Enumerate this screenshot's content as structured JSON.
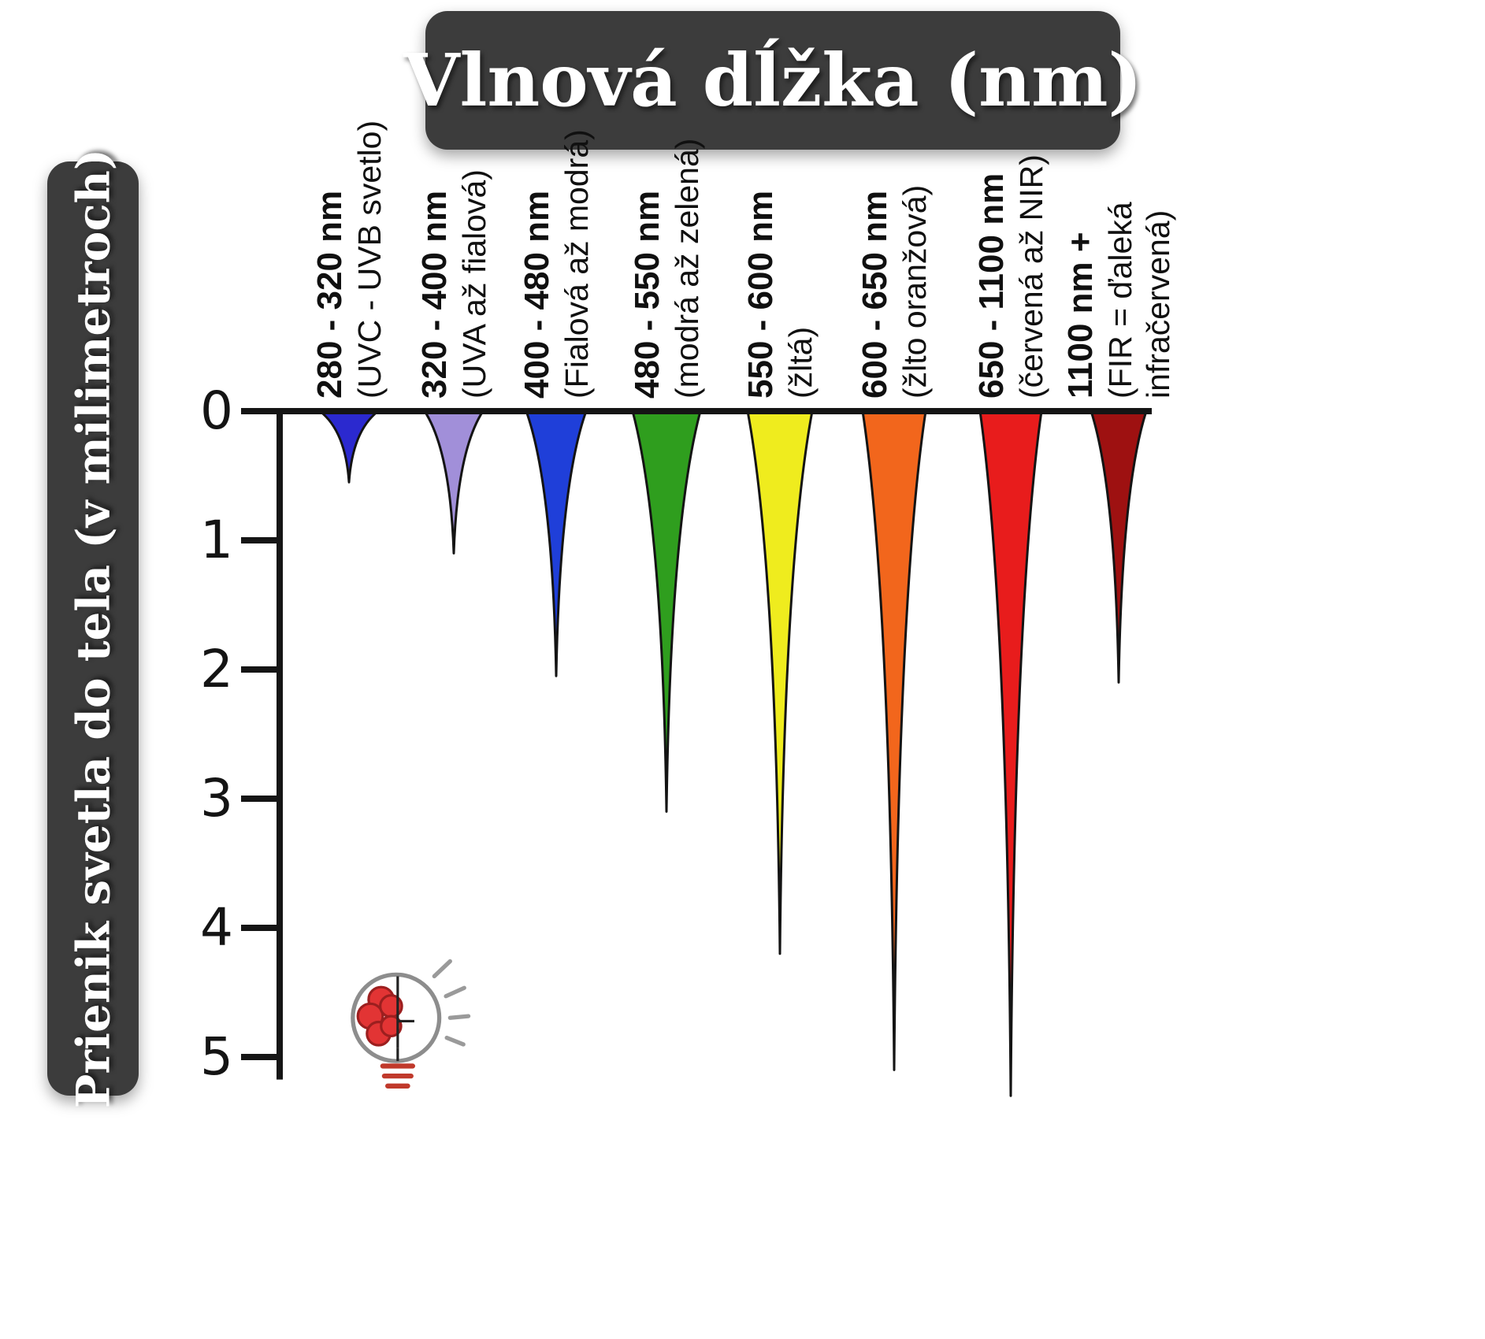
{
  "chart_data": {
    "type": "bar",
    "title": "Vlnová dĺžka (nm)",
    "ylabel": "Prienik svetla do tela (v milimetroch)",
    "ylim": [
      0,
      5.4
    ],
    "y_unit": "mm",
    "grid": false,
    "y_ticks": [
      "0",
      "1",
      "2",
      "3",
      "4",
      "5"
    ],
    "categories": [
      {
        "range": "280 - 320 nm",
        "label": "(UVC - UVB svetlo)",
        "depth_mm": 0.55,
        "color": "#2b29cf"
      },
      {
        "range": "320 - 400 nm",
        "label": "(UVA až fialová)",
        "depth_mm": 1.1,
        "color": "#a18fd9"
      },
      {
        "range": "400 - 480 nm",
        "label": "(Fialová až modrá)",
        "depth_mm": 2.05,
        "color": "#1f3fd9"
      },
      {
        "range": "480 - 550 nm",
        "label": "(modrá až zelená)",
        "depth_mm": 3.1,
        "color": "#2f9e1e"
      },
      {
        "range": "550 - 600 nm",
        "label": "(žltá)",
        "depth_mm": 4.2,
        "color": "#efec1e"
      },
      {
        "range": "600 - 650 nm",
        "label": "(žlto oranžová)",
        "depth_mm": 5.1,
        "color": "#f2661c"
      },
      {
        "range": "650 - 1100 nm",
        "label": "(červená až NIR)",
        "depth_mm": 5.3,
        "color": "#e81c1c"
      },
      {
        "range": "1100 nm +",
        "label": "(FIR = ďaleká\ninfračervená)",
        "depth_mm": 2.1,
        "color": "#9e1111"
      }
    ]
  },
  "logo": {
    "name": "brain-lightbulb"
  },
  "colors": {
    "panel": "#3c3c3c",
    "axis": "#151515",
    "background": "#ffffff",
    "text": "#101010"
  }
}
